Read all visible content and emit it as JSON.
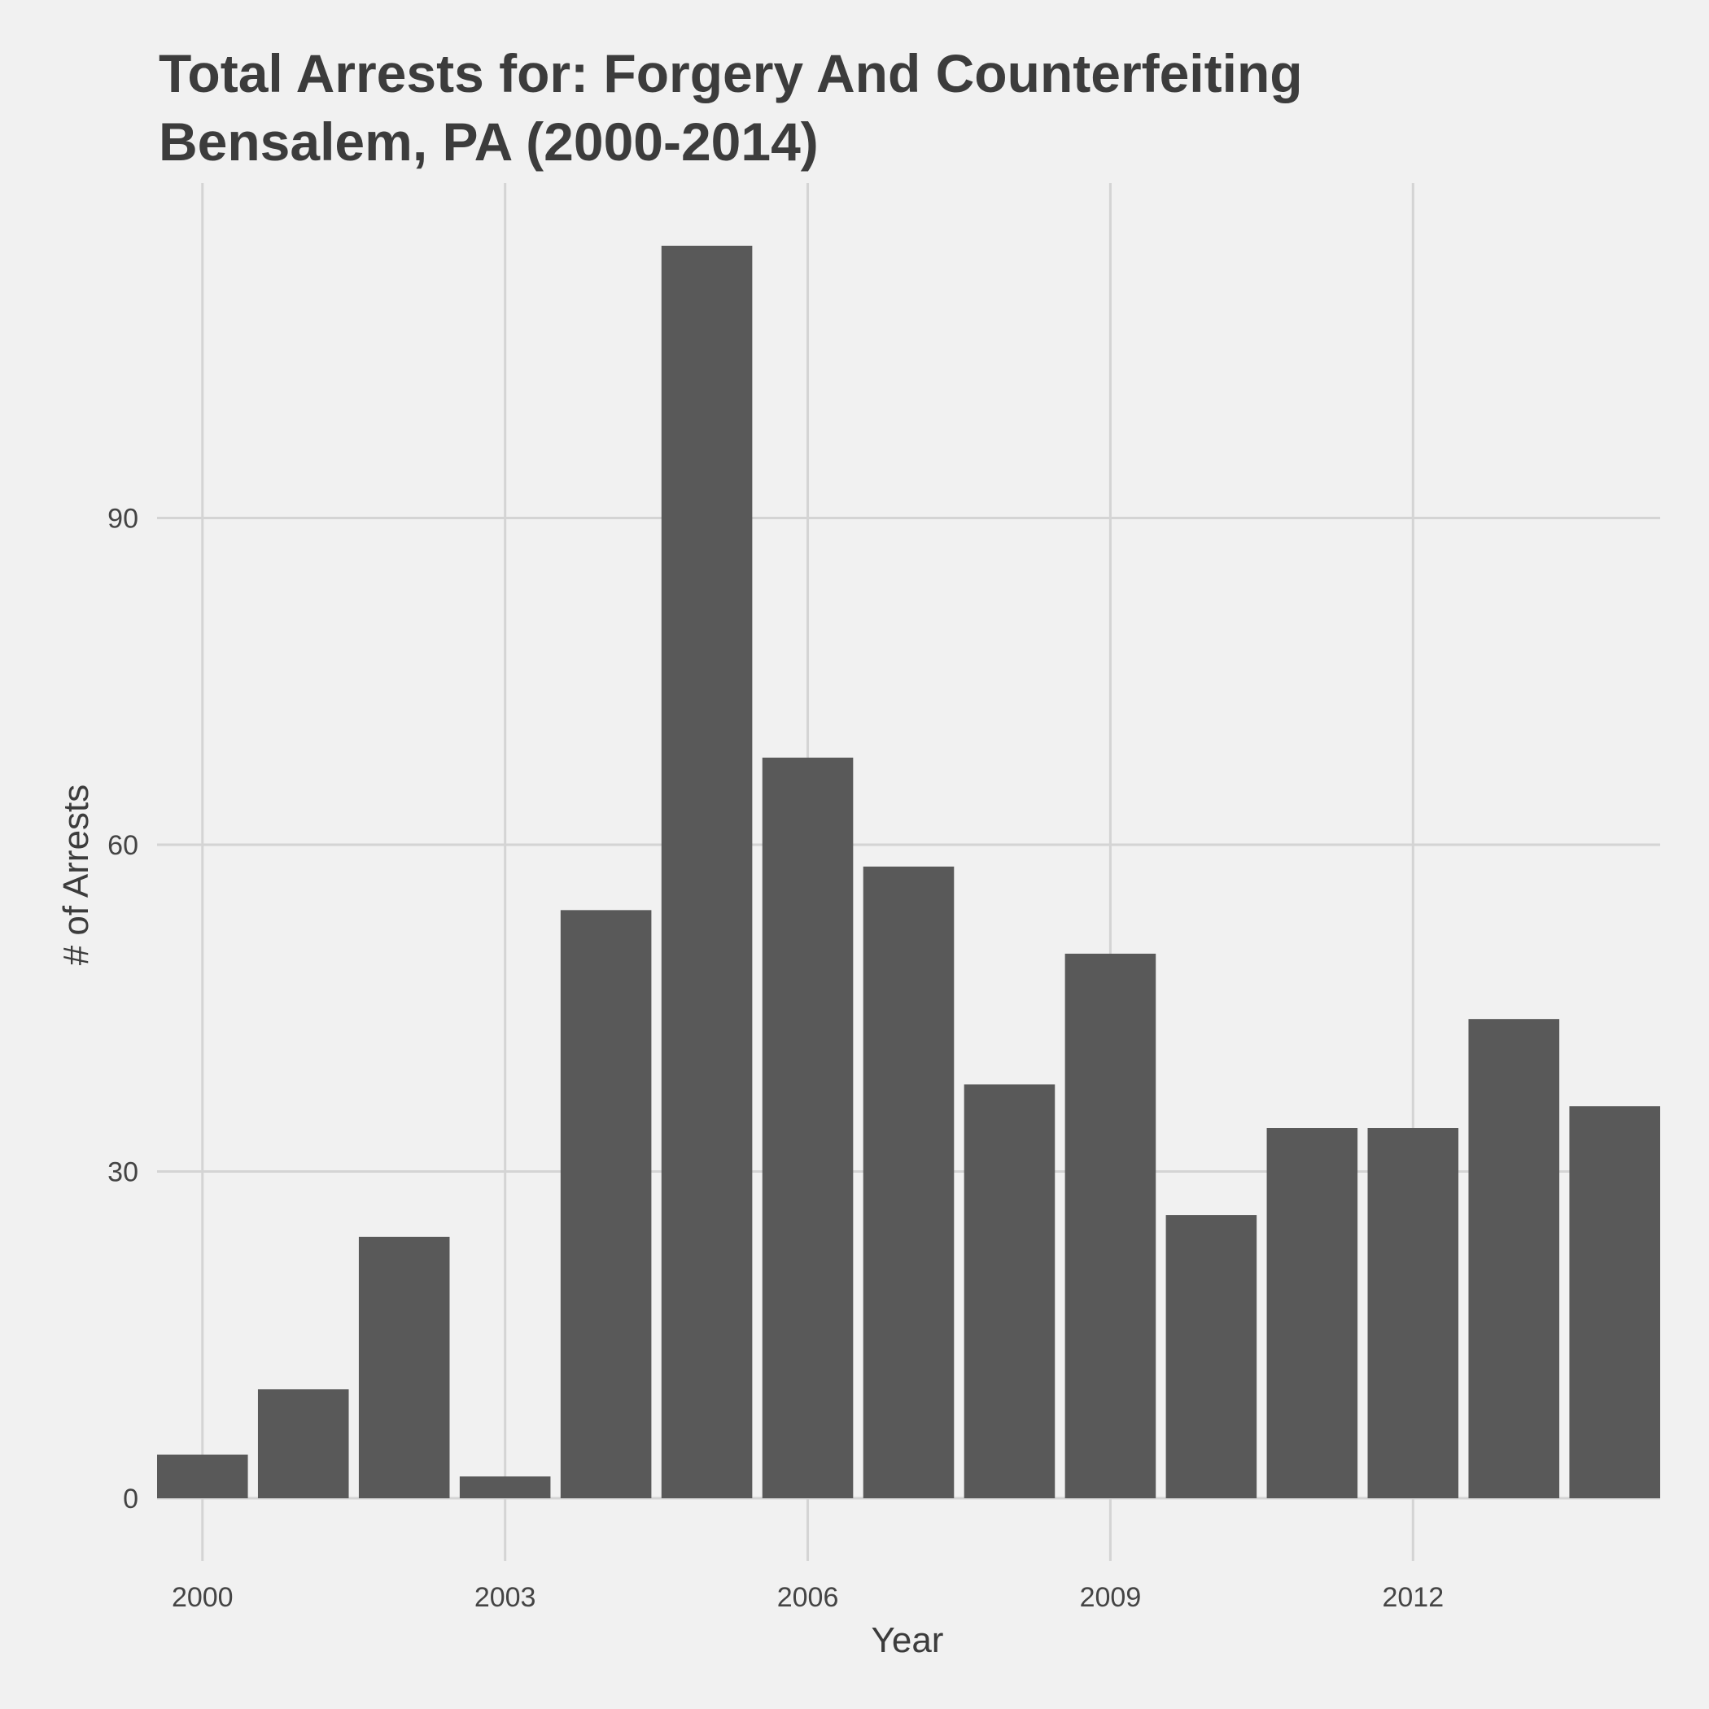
{
  "chart_data": {
    "type": "bar",
    "title_line1": "Total Arrests for: Forgery And Counterfeiting",
    "title_line2": "Bensalem, PA (2000-2014)",
    "xlabel": "Year",
    "ylabel": "# of Arrests",
    "categories": [
      2000,
      2001,
      2002,
      2003,
      2004,
      2005,
      2006,
      2007,
      2008,
      2009,
      2010,
      2011,
      2012,
      2013,
      2014
    ],
    "values": [
      4,
      10,
      24,
      2,
      54,
      115,
      68,
      58,
      38,
      50,
      26,
      34,
      34,
      44,
      36
    ],
    "x_ticks": [
      2000,
      2003,
      2006,
      2009,
      2012
    ],
    "y_ticks": [
      0,
      30,
      60,
      90
    ],
    "xlim": [
      1999.55,
      2014.45
    ],
    "ylim": [
      -5.75,
      120.75
    ],
    "grid": true,
    "colors": {
      "bar": "#595959",
      "background": "#f1f1f1",
      "grid": "#d4d4d4"
    }
  }
}
